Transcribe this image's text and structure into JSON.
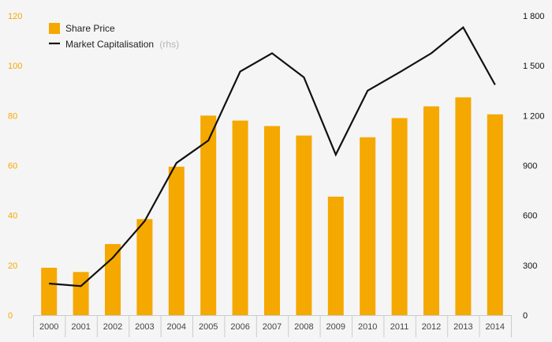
{
  "chart_data": {
    "type": "bar+line",
    "categories": [
      "2000",
      "2001",
      "2002",
      "2003",
      "2004",
      "2005",
      "2006",
      "2007",
      "2008",
      "2009",
      "2010",
      "2011",
      "2012",
      "2013",
      "2014"
    ],
    "series": [
      {
        "name": "Share Price",
        "type": "bar",
        "axis": "left",
        "values": [
          19,
          17.3,
          28.5,
          38.5,
          59.5,
          80,
          78,
          75.8,
          72,
          47.5,
          71.3,
          79,
          83.7,
          87.3,
          80.5
        ]
      },
      {
        "name": "Market Capitalisation",
        "type": "line",
        "axis": "right",
        "values": [
          190,
          175,
          345,
          565,
          915,
          1050,
          1465,
          1575,
          1430,
          965,
          1350,
          1460,
          1575,
          1730,
          1385
        ]
      }
    ],
    "legend": {
      "items": [
        {
          "label": "Share Price",
          "suffix": ""
        },
        {
          "label": "Market Capitalisation",
          "suffix": "(rhs)"
        }
      ],
      "position": "top-left"
    },
    "y_left": {
      "ylim": [
        0,
        120
      ],
      "ticks": [
        0,
        20,
        40,
        60,
        80,
        100,
        120
      ],
      "tick_labels": [
        "0",
        "20",
        "40",
        "60",
        "80",
        "100",
        "120"
      ]
    },
    "y_right": {
      "ylim": [
        0,
        1800
      ],
      "ticks": [
        0,
        300,
        600,
        900,
        1200,
        1500,
        1800
      ],
      "tick_labels": [
        "0",
        "300",
        "600",
        "900",
        "1 200",
        "1 500",
        "1 800"
      ]
    },
    "grid": false,
    "colors": {
      "bar": "#F5A800",
      "line": "#111111",
      "left_axis_text": "#F5A800",
      "background": "#F5F5F5",
      "xaxis_border": "#CCCCCC"
    }
  }
}
